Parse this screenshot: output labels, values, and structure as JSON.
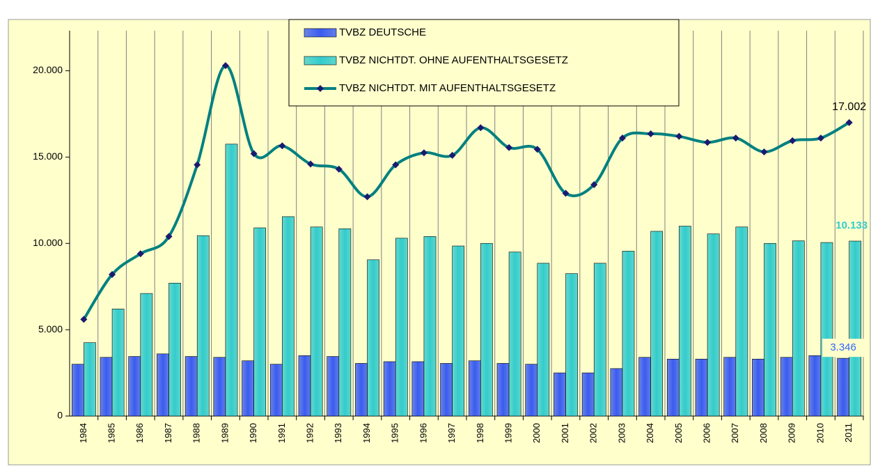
{
  "chart_data": {
    "type": "bar-line",
    "categories": [
      "1984",
      "1985",
      "1986",
      "1987",
      "1988",
      "1989",
      "1990",
      "1991",
      "1992",
      "1993",
      "1994",
      "1995",
      "1996",
      "1997",
      "1998",
      "1999",
      "2000",
      "2001",
      "2002",
      "2003",
      "2004",
      "2005",
      "2006",
      "2007",
      "2008",
      "2009",
      "2010",
      "2011"
    ],
    "series": [
      {
        "name": "TVBZ DEUTSCHE",
        "color": "#3a5cf0",
        "kind": "bar",
        "values": [
          3000,
          3400,
          3450,
          3600,
          3450,
          3400,
          3200,
          3000,
          3500,
          3450,
          3050,
          3150,
          3150,
          3050,
          3200,
          3050,
          3000,
          2500,
          2500,
          2750,
          3400,
          3300,
          3300,
          3400,
          3300,
          3400,
          3500,
          3346
        ],
        "value_labels": [
          null,
          null,
          null,
          null,
          null,
          null,
          null,
          null,
          null,
          null,
          null,
          null,
          null,
          null,
          null,
          null,
          null,
          null,
          null,
          null,
          null,
          null,
          null,
          null,
          null,
          null,
          null,
          "3.346"
        ]
      },
      {
        "name": "TVBZ NICHTDT. OHNE AUFENTHALTSGESETZ",
        "color": "#33cccc",
        "kind": "bar",
        "values": [
          4250,
          6200,
          7100,
          7700,
          10450,
          15750,
          10900,
          11550,
          10950,
          10850,
          9050,
          10300,
          10400,
          9850,
          10000,
          9500,
          8850,
          8250,
          8850,
          9550,
          10700,
          11000,
          10550,
          10950,
          10000,
          10150,
          10050,
          10133
        ],
        "value_labels": [
          null,
          null,
          null,
          null,
          null,
          null,
          null,
          null,
          null,
          null,
          null,
          null,
          null,
          null,
          null,
          null,
          null,
          null,
          null,
          null,
          null,
          null,
          null,
          null,
          null,
          null,
          null,
          "10.133"
        ]
      },
      {
        "name": "TVBZ NICHTDT. MIT AUFENTHALTSGESETZ",
        "color": "#008080",
        "kind": "line",
        "values": [
          5600,
          8200,
          9400,
          10400,
          14550,
          20300,
          15200,
          15650,
          14600,
          14300,
          12700,
          14550,
          15250,
          15100,
          16700,
          15550,
          15450,
          12900,
          13400,
          16100,
          16350,
          16200,
          15850,
          16100,
          15300,
          15950,
          16100,
          17002
        ],
        "value_labels": [
          null,
          null,
          null,
          null,
          null,
          null,
          null,
          null,
          null,
          null,
          null,
          null,
          null,
          null,
          null,
          null,
          null,
          null,
          null,
          null,
          null,
          null,
          null,
          null,
          null,
          null,
          null,
          "17.002"
        ]
      }
    ],
    "ylim": [
      0,
      22000
    ],
    "yticks": [
      {
        "value": 0,
        "label": "0"
      },
      {
        "value": 5000,
        "label": "5.000"
      },
      {
        "value": 10000,
        "label": "10.000"
      },
      {
        "value": 15000,
        "label": "15.000"
      },
      {
        "value": 20000,
        "label": "20.000"
      }
    ],
    "grid": "vertical"
  }
}
